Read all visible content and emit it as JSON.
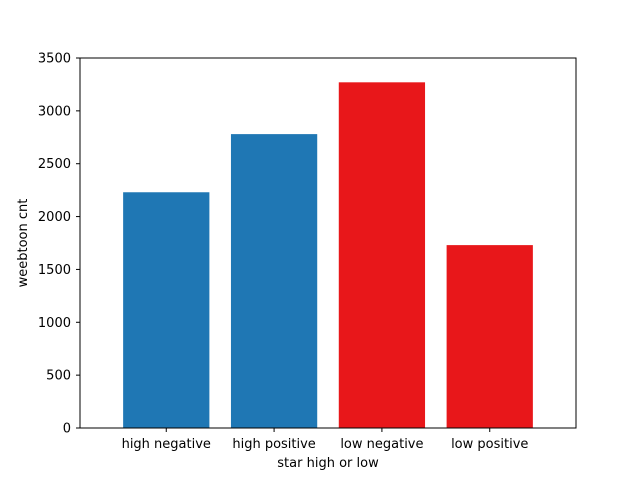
{
  "chart_data": {
    "type": "bar",
    "title": "",
    "xlabel": "star high or low",
    "ylabel": "weebtoon cnt",
    "categories": [
      "high negative",
      "high positive",
      "low negative",
      "low positive"
    ],
    "values": [
      2230,
      2780,
      3270,
      1730
    ],
    "bar_colors": [
      "#1f77b4",
      "#1f77b4",
      "#e8171a",
      "#e8171a"
    ],
    "ylim": [
      0,
      3500
    ],
    "yticks": [
      0,
      500,
      1000,
      1500,
      2000,
      2500,
      3000,
      3500
    ],
    "grid": false,
    "legend": "none"
  }
}
